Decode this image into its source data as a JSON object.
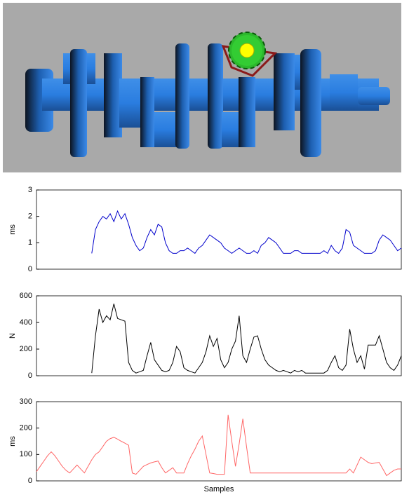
{
  "chart_data": [
    {
      "type": "line",
      "y_label": "ms",
      "ylim": [
        0,
        3
      ],
      "yticks": [
        0,
        1,
        2,
        3
      ],
      "series": [
        {
          "color": "#0000cc",
          "values": [
            null,
            null,
            null,
            null,
            null,
            null,
            null,
            null,
            null,
            null,
            null,
            null,
            null,
            null,
            null,
            0.6,
            1.5,
            1.8,
            2.0,
            1.9,
            2.1,
            1.8,
            2.2,
            1.9,
            2.1,
            1.7,
            1.2,
            0.9,
            0.7,
            0.8,
            1.2,
            1.5,
            1.3,
            1.7,
            1.6,
            1.0,
            0.7,
            0.6,
            0.6,
            0.7,
            0.7,
            0.8,
            0.7,
            0.6,
            0.8,
            0.9,
            1.1,
            1.3,
            1.2,
            1.1,
            1.0,
            0.8,
            0.7,
            0.6,
            0.7,
            0.8,
            0.7,
            0.6,
            0.6,
            0.7,
            0.6,
            0.9,
            1.0,
            1.2,
            1.1,
            1.0,
            0.8,
            0.6,
            0.6,
            0.6,
            0.7,
            0.7,
            0.6,
            0.6,
            0.6,
            0.6,
            0.6,
            0.6,
            0.7,
            0.6,
            0.9,
            0.7,
            0.6,
            0.8,
            1.5,
            1.4,
            0.9,
            0.8,
            0.7,
            0.6,
            0.6,
            0.6,
            0.7,
            1.1,
            1.3,
            1.2,
            1.1,
            0.9,
            0.7,
            0.8
          ]
        }
      ]
    },
    {
      "type": "line",
      "y_label": "N",
      "ylim": [
        0,
        600
      ],
      "yticks": [
        0,
        200,
        400,
        600
      ],
      "series": [
        {
          "color": "#000000",
          "values": [
            null,
            null,
            null,
            null,
            null,
            null,
            null,
            null,
            null,
            null,
            null,
            null,
            null,
            null,
            null,
            20,
            300,
            500,
            400,
            450,
            420,
            540,
            430,
            420,
            410,
            100,
            40,
            20,
            30,
            40,
            150,
            250,
            120,
            80,
            40,
            30,
            40,
            100,
            220,
            180,
            60,
            40,
            30,
            20,
            60,
            100,
            180,
            300,
            220,
            280,
            120,
            60,
            100,
            200,
            260,
            450,
            150,
            100,
            200,
            290,
            300,
            200,
            120,
            80,
            60,
            40,
            30,
            40,
            30,
            20,
            40,
            30,
            40,
            20,
            20,
            20,
            20,
            20,
            20,
            40,
            100,
            150,
            60,
            40,
            80,
            350,
            200,
            100,
            150,
            50,
            230,
            230,
            230,
            300,
            200,
            100,
            60,
            40,
            80,
            150
          ]
        }
      ]
    },
    {
      "type": "line",
      "y_label": "ms",
      "x_label": "Samples",
      "ylim": [
        0,
        300
      ],
      "yticks": [
        0,
        100,
        200,
        300
      ],
      "series": [
        {
          "color": "#ff6666",
          "values": [
            35,
            55,
            75,
            95,
            110,
            95,
            75,
            55,
            40,
            30,
            45,
            60,
            45,
            30,
            55,
            80,
            100,
            110,
            130,
            150,
            160,
            165,
            158,
            150,
            143,
            135,
            30,
            25,
            40,
            55,
            62,
            68,
            72,
            75,
            50,
            30,
            40,
            50,
            30,
            30,
            30,
            65,
            95,
            120,
            150,
            170,
            100,
            30,
            28,
            25,
            25,
            25,
            250,
            150,
            55,
            140,
            235,
            130,
            30,
            30,
            30,
            30,
            30,
            30,
            30,
            30,
            30,
            30,
            30,
            30,
            30,
            30,
            30,
            30,
            30,
            30,
            30,
            30,
            30,
            30,
            30,
            30,
            30,
            30,
            30,
            45,
            30,
            60,
            90,
            80,
            70,
            65,
            68,
            70,
            45,
            20,
            30,
            40,
            45,
            45
          ]
        }
      ]
    }
  ]
}
